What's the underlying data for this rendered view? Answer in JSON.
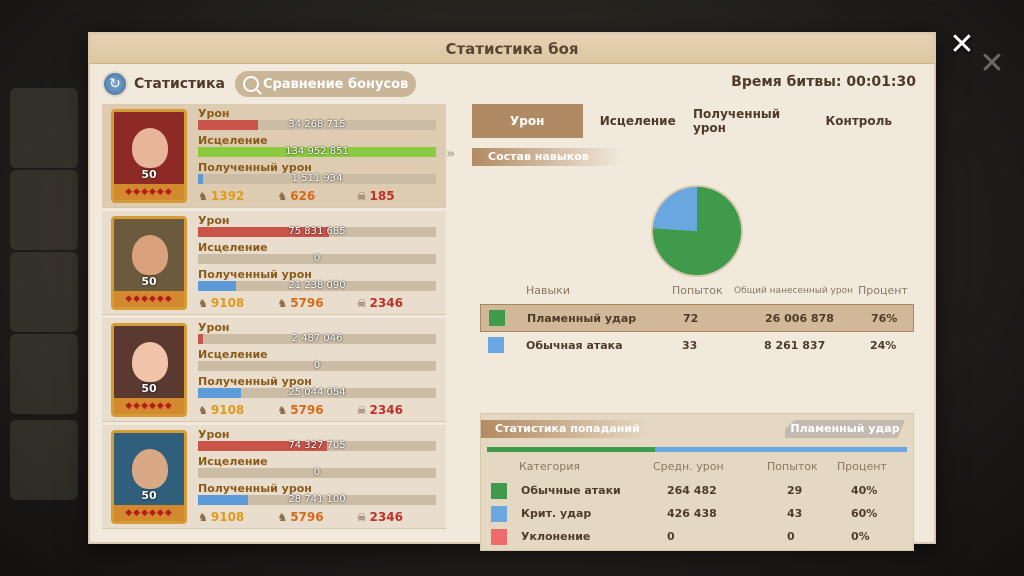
{
  "title": "Статистика боя",
  "close_symbol": "✕",
  "header": {
    "stat_tab_label": "Статистика",
    "compare_button_label": "Сравнение бонусов",
    "battle_time": "Время битвы: 00:01:30"
  },
  "labels": {
    "damage": "Урон",
    "heal": "Исцеление",
    "received": "Полученный урон"
  },
  "heroes": [
    {
      "level": "50",
      "damage": "34 268 715",
      "damage_fill": 0.25,
      "heal": "134 952 851",
      "heal_fill": 1.0,
      "received": "1 511 934",
      "received_fill": 0.02,
      "heal_count": "1392",
      "damage_count": "626",
      "kills": "185",
      "colors": {
        "bg": "#8d2a26",
        "face": "#e8b49a"
      }
    },
    {
      "level": "50",
      "damage": "75 831 685",
      "damage_fill": 0.55,
      "heal": "0",
      "heal_fill": 0.0,
      "received": "21 238 090",
      "received_fill": 0.16,
      "heal_count": "9108",
      "damage_count": "5796",
      "kills": "2346",
      "colors": {
        "bg": "#6b5a3d",
        "face": "#d9a27c"
      }
    },
    {
      "level": "50",
      "damage": "2 487 046",
      "damage_fill": 0.02,
      "heal": "0",
      "heal_fill": 0.0,
      "received": "25 044 054",
      "received_fill": 0.18,
      "heal_count": "9108",
      "damage_count": "5796",
      "kills": "2346",
      "colors": {
        "bg": "#5a3a30",
        "face": "#efc4a8"
      }
    },
    {
      "level": "50",
      "damage": "74 327 705",
      "damage_fill": 0.54,
      "heal": "0",
      "heal_fill": 0.0,
      "received": "28 741 100",
      "received_fill": 0.21,
      "heal_count": "9108",
      "damage_count": "5796",
      "kills": "2346",
      "colors": {
        "bg": "#2f5f7a",
        "face": "#d9a884"
      }
    }
  ],
  "right_tabs": [
    "Урон",
    "Исцеление",
    "Полученный урон",
    "Контроль"
  ],
  "skills_section_title": "Состав навыков",
  "skills_headers": {
    "name": "Навыки",
    "attempts": "Попыток",
    "total": "Общий нанесенный урон",
    "percent": "Процент"
  },
  "skills": [
    {
      "name": "Пламенный удар",
      "attempts": "72",
      "total": "26 006 878",
      "percent": "76%",
      "color": "#3f9a4c",
      "share": 0.76
    },
    {
      "name": "Обычная атака",
      "attempts": "33",
      "total": "8 261 837",
      "percent": "24%",
      "color": "#6aa6df",
      "share": 0.24
    }
  ],
  "hits": {
    "title": "Статистика попаданий",
    "skill_button": "Пламенный удар",
    "headers": {
      "category": "Категория",
      "avg": "Средн. урон",
      "attempts": "Попыток",
      "percent": "Процент"
    },
    "split": [
      0.4,
      0.6
    ],
    "rows": [
      {
        "name": "Обычные атаки",
        "avg": "264 482",
        "attempts": "29",
        "percent": "40%",
        "color": "#3f9a4c"
      },
      {
        "name": "Крит. удар",
        "avg": "426 438",
        "attempts": "43",
        "percent": "60%",
        "color": "#6aa6df"
      },
      {
        "name": "Уклонение",
        "avg": "0",
        "attempts": "0",
        "percent": "0%",
        "color": "#ef6b6b"
      }
    ]
  }
}
